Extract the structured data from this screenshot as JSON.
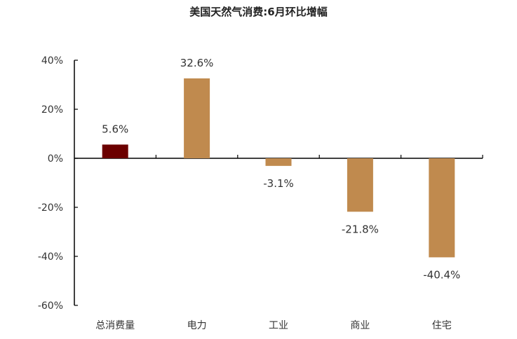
{
  "chart_data": {
    "type": "bar",
    "title": "美国天然气消费:6月环比增幅",
    "categories": [
      "总消费量",
      "电力",
      "工业",
      "商业",
      "住宅"
    ],
    "values": [
      5.6,
      32.6,
      -3.1,
      -21.8,
      -40.4
    ],
    "data_labels": [
      "5.6%",
      "32.6%",
      "-3.1%",
      "-21.8%",
      "-40.4%"
    ],
    "ylim": [
      -60,
      40
    ],
    "yticks": [
      40,
      20,
      0,
      -20,
      -40,
      -60
    ],
    "ytick_labels": [
      "40%",
      "20%",
      "0%",
      "-20%",
      "-40%",
      "-60%"
    ],
    "colors": [
      "#6b0000",
      "#c08a4e",
      "#c08a4e",
      "#c08a4e",
      "#c08a4e"
    ],
    "grid": false,
    "legend": "none"
  }
}
